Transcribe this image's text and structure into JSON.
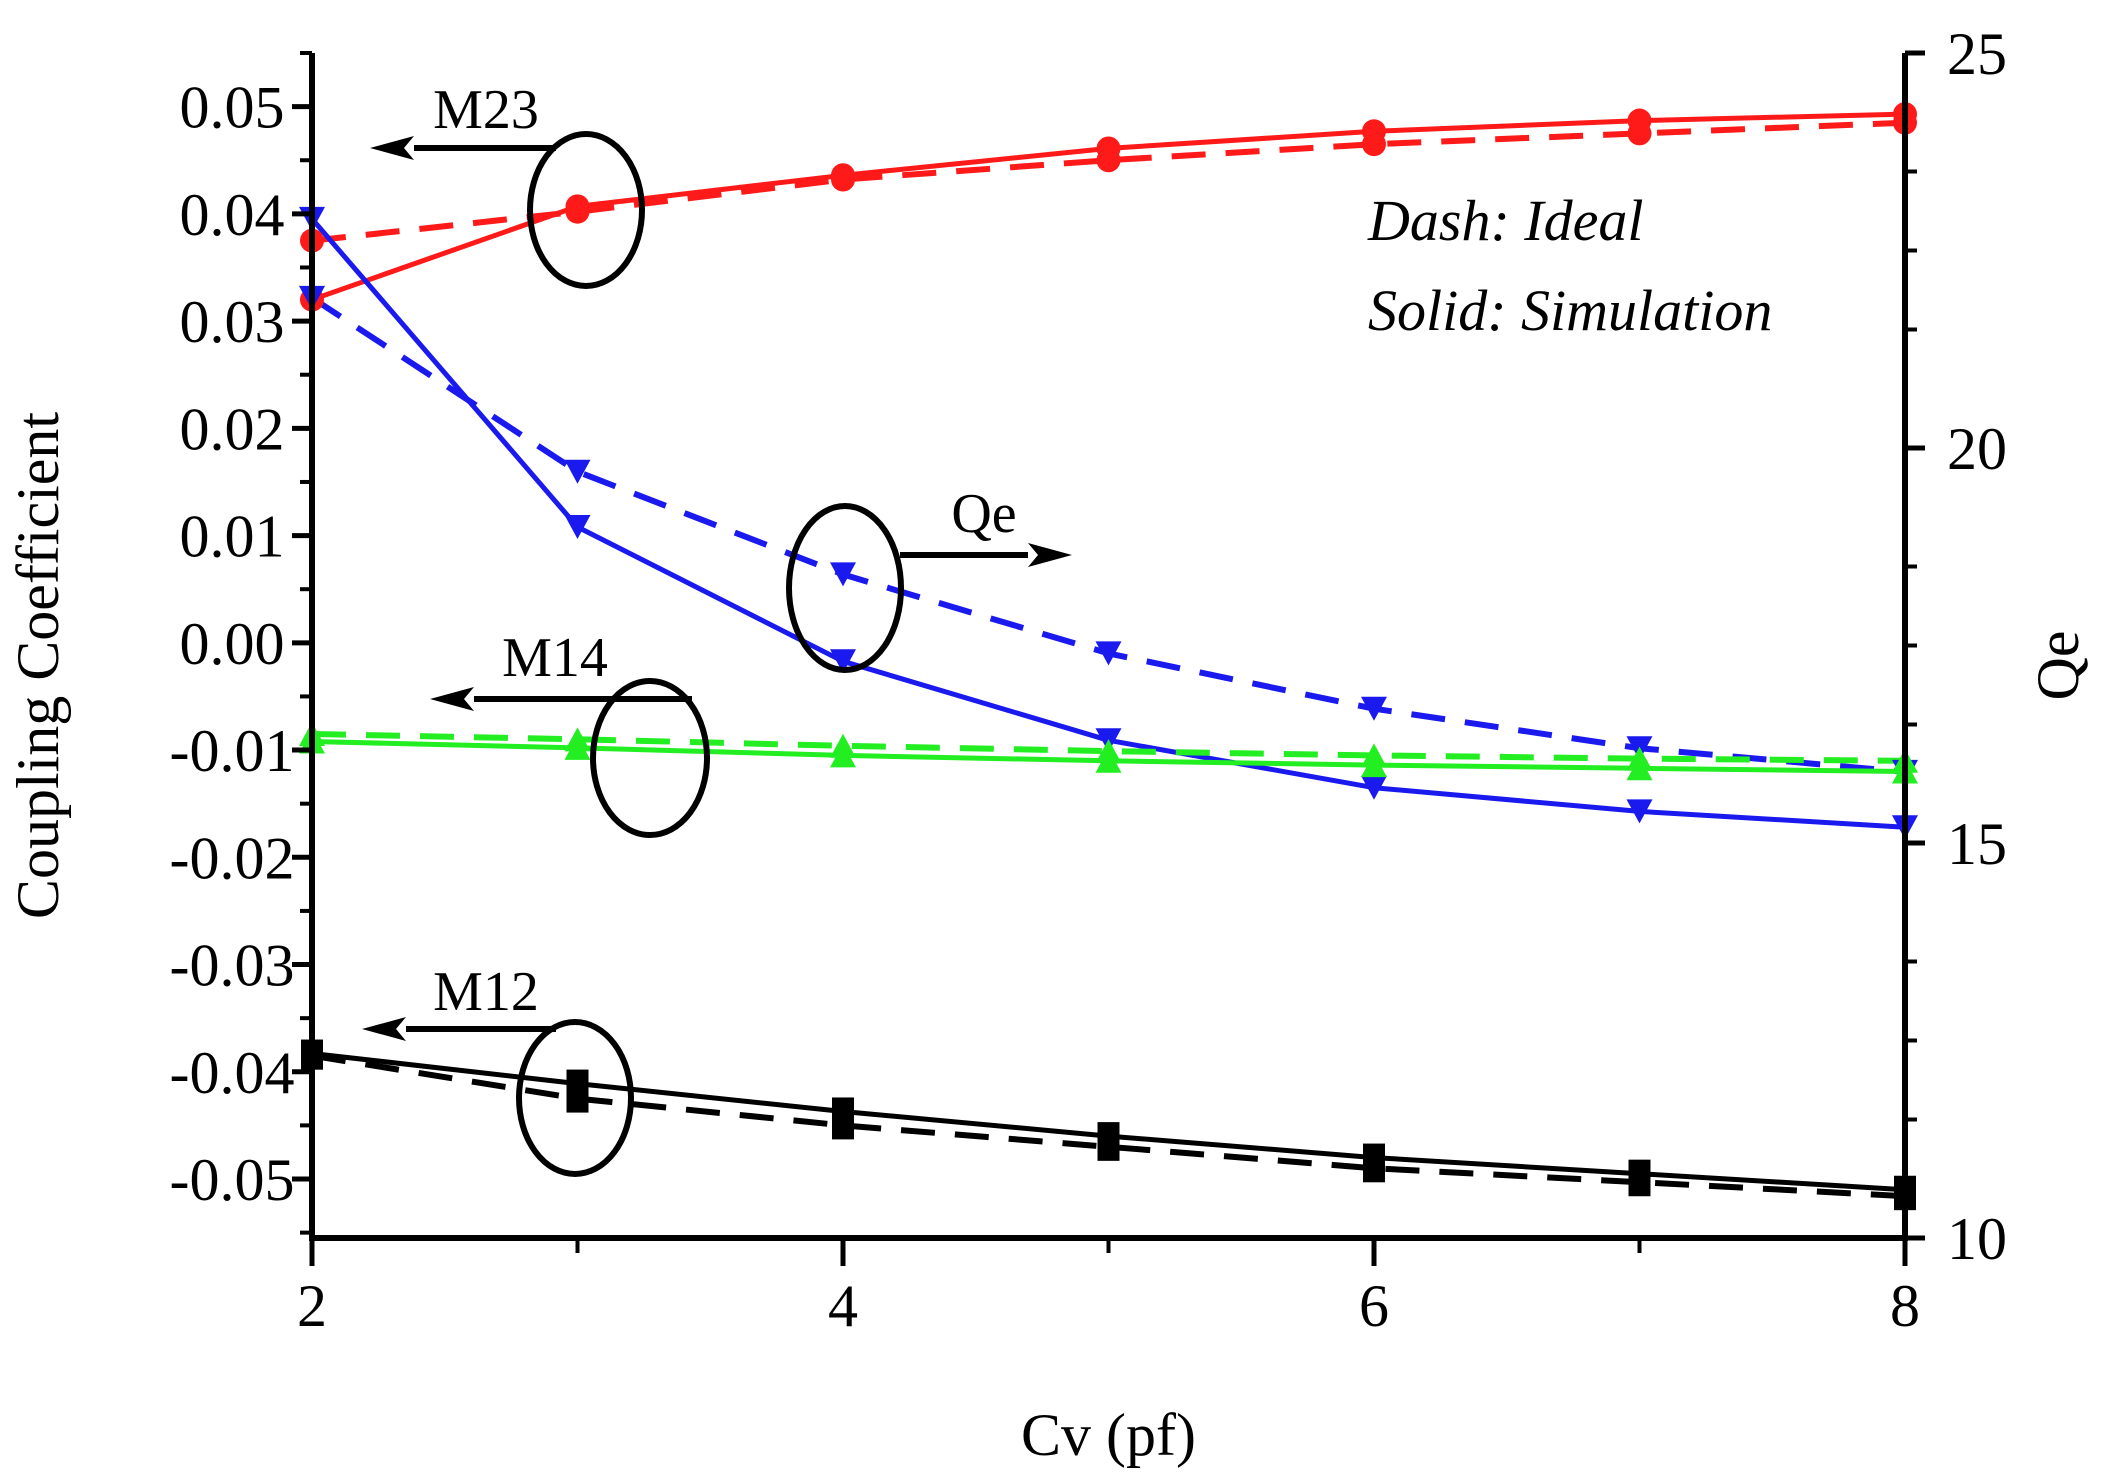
{
  "chart_data": {
    "type": "line",
    "xlabel": "Cv (pf)",
    "ylabel_left": "Coupling Coefficient",
    "ylabel_right": "Qe",
    "x_ticks": [
      2,
      4,
      6,
      8
    ],
    "y_left_ticks": [
      "0.05",
      "0.04",
      "0.03",
      "0.02",
      "0.01",
      "0.00",
      "-0.01",
      "-0.02",
      "-0.03",
      "-0.04",
      "-0.05"
    ],
    "y_right_ticks": [
      "25",
      "20",
      "15",
      "10"
    ],
    "xlim": [
      2,
      8
    ],
    "ylim_left": [
      -0.0555,
      0.055
    ],
    "ylim_right": [
      10,
      25
    ],
    "notes": [
      "Dash: Ideal",
      "Solid: Simulation"
    ],
    "annotations": [
      {
        "text": "M23",
        "arrow": "left"
      },
      {
        "text": "Qe",
        "arrow": "right"
      },
      {
        "text": "M14",
        "arrow": "left"
      },
      {
        "text": "M12",
        "arrow": "left"
      }
    ],
    "series": [
      {
        "name": "M23 Ideal",
        "axis": "left",
        "style": "dash",
        "marker": "circle",
        "color": "#ff1a1a",
        "x": [
          2,
          3,
          4,
          5,
          6,
          7,
          8
        ],
        "values": [
          0.0375,
          0.0402,
          0.0432,
          0.045,
          0.0465,
          0.0475,
          0.0485
        ]
      },
      {
        "name": "M23 Simulation",
        "axis": "left",
        "style": "solid",
        "marker": "circle",
        "color": "#ff1a1a",
        "x": [
          2,
          3,
          4,
          5,
          6,
          7,
          8
        ],
        "values": [
          0.032,
          0.0407,
          0.0436,
          0.0461,
          0.0477,
          0.0487,
          0.0493
        ]
      },
      {
        "name": "Qe Ideal",
        "axis": "right",
        "style": "dash",
        "marker": "triangle-down",
        "color": "#1a1aee",
        "x": [
          2,
          3,
          4,
          5,
          6,
          7,
          8
        ],
        "values": [
          21.9,
          19.7,
          18.4,
          17.4,
          16.7,
          16.2,
          15.9
        ]
      },
      {
        "name": "Qe Simulation",
        "axis": "right",
        "style": "solid",
        "marker": "triangle-down",
        "color": "#1a1aee",
        "x": [
          2,
          3,
          4,
          5,
          6,
          7,
          8
        ],
        "values": [
          22.9,
          19.0,
          17.3,
          16.3,
          15.7,
          15.4,
          15.2
        ]
      },
      {
        "name": "M14 Ideal",
        "axis": "left",
        "style": "dash",
        "marker": "triangle-up",
        "color": "#22ee22",
        "x": [
          2,
          3,
          4,
          5,
          6,
          7,
          8
        ],
        "values": [
          -0.0085,
          -0.009,
          -0.0096,
          -0.0101,
          -0.0105,
          -0.0108,
          -0.011
        ]
      },
      {
        "name": "M14 Simulation",
        "axis": "left",
        "style": "solid",
        "marker": "triangle-up",
        "color": "#22ee22",
        "x": [
          2,
          3,
          4,
          5,
          6,
          7,
          8
        ],
        "values": [
          -0.0092,
          -0.0098,
          -0.0105,
          -0.011,
          -0.0114,
          -0.0117,
          -0.012
        ]
      },
      {
        "name": "M12 Ideal",
        "axis": "left",
        "style": "dash",
        "marker": "square",
        "color": "#000000",
        "x": [
          2,
          3,
          4,
          5,
          6,
          7,
          8
        ],
        "values": [
          -0.0385,
          -0.0425,
          -0.045,
          -0.047,
          -0.049,
          -0.0503,
          -0.0516
        ]
      },
      {
        "name": "M12 Simulation",
        "axis": "left",
        "style": "solid",
        "marker": "square",
        "color": "#000000",
        "x": [
          2,
          3,
          4,
          5,
          6,
          7,
          8
        ],
        "values": [
          -0.0383,
          -0.0411,
          -0.0437,
          -0.046,
          -0.048,
          -0.0495,
          -0.051
        ]
      }
    ]
  }
}
